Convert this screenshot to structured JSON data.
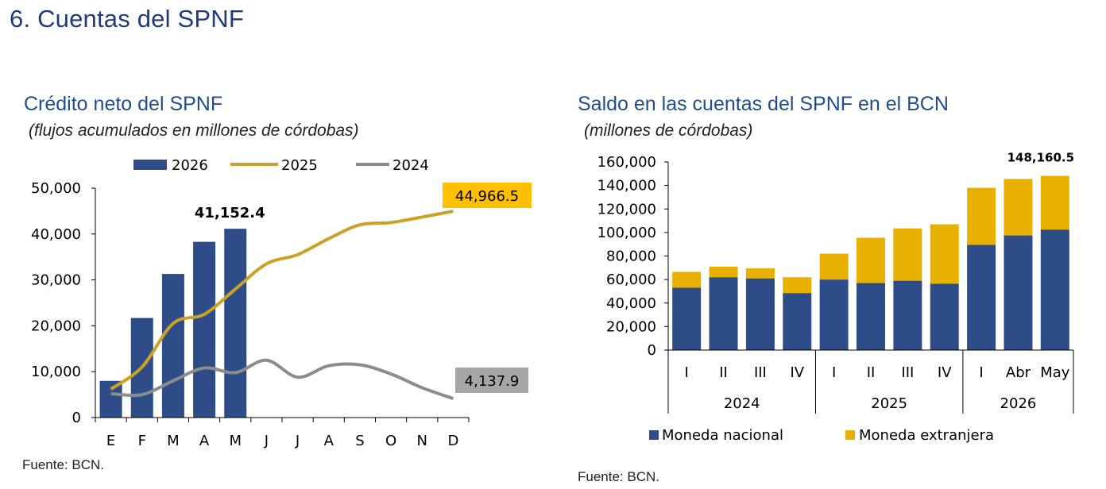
{
  "page": {
    "title": "6.  Cuentas del SPNF"
  },
  "left": {
    "title": "Crédito neto del SPNF",
    "subtitle": "(flujos acumulados en millones de córdobas)",
    "source": "Fuente: BCN.",
    "top_bar_label": "41,152.4",
    "callout_2025": "44,966.5",
    "callout_2024": "4,137.9"
  },
  "right": {
    "title": "Saldo en las cuentas del SPNF en el BCN",
    "subtitle": "(millones de córdobas)",
    "source": "Fuente: BCN.",
    "top_label": "148,160.5"
  },
  "colors": {
    "navy": "#2e4c87",
    "gold": "#c9a227",
    "gray": "#8c8c8c",
    "yellow": "#e8b000",
    "callout_yellow": "#ffc000",
    "callout_gray": "#a6a6a6"
  },
  "chart_data": [
    {
      "type": "bar+line",
      "title": "Crédito neto del SPNF",
      "subtitle": "(flujos acumulados en millones de córdobas)",
      "categories": [
        "E",
        "F",
        "M",
        "A",
        "M",
        "J",
        "J",
        "A",
        "S",
        "O",
        "N",
        "D"
      ],
      "ylim": [
        0,
        50000
      ],
      "yticks": [
        "0",
        "10,000",
        "20,000",
        "30,000",
        "40,000",
        "50,000"
      ],
      "legend_position": "top",
      "series": [
        {
          "name": "2026",
          "kind": "bar",
          "values": [
            8000,
            21700,
            31300,
            38300,
            41152.4,
            null,
            null,
            null,
            null,
            null,
            null,
            null
          ]
        },
        {
          "name": "2025",
          "kind": "line",
          "values": [
            6200,
            11000,
            20500,
            22500,
            28000,
            33500,
            35500,
            39000,
            42000,
            42500,
            43700,
            44966.5
          ]
        },
        {
          "name": "2024",
          "kind": "line",
          "values": [
            5200,
            5000,
            8000,
            10800,
            9800,
            12500,
            8800,
            11300,
            11500,
            9500,
            6500,
            4137.9
          ]
        }
      ]
    },
    {
      "type": "stacked-bar",
      "title": "Saldo en las cuentas del SPNF en el BCN",
      "subtitle": "(millones de córdobas)",
      "categories": [
        "I",
        "II",
        "III",
        "IV",
        "I",
        "II",
        "III",
        "IV",
        "I",
        "Abr",
        "May"
      ],
      "groups": [
        {
          "label": "2024",
          "count": 4
        },
        {
          "label": "2025",
          "count": 4
        },
        {
          "label": "2026",
          "count": 3
        }
      ],
      "ylim": [
        0,
        160000
      ],
      "yticks": [
        "0",
        "20,000",
        "40,000",
        "60,000",
        "80,000",
        "100,000",
        "120,000",
        "140,000",
        "160,000"
      ],
      "legend_position": "bottom",
      "series": [
        {
          "name": "Moneda nacional",
          "values": [
            53000,
            62000,
            61000,
            48500,
            60000,
            57000,
            59000,
            56500,
            89500,
            97500,
            102500
          ]
        },
        {
          "name": "Moneda extranjera",
          "values": [
            13500,
            9000,
            8500,
            13500,
            22000,
            38500,
            44500,
            50500,
            48500,
            48000,
            45660.5
          ]
        }
      ]
    }
  ]
}
